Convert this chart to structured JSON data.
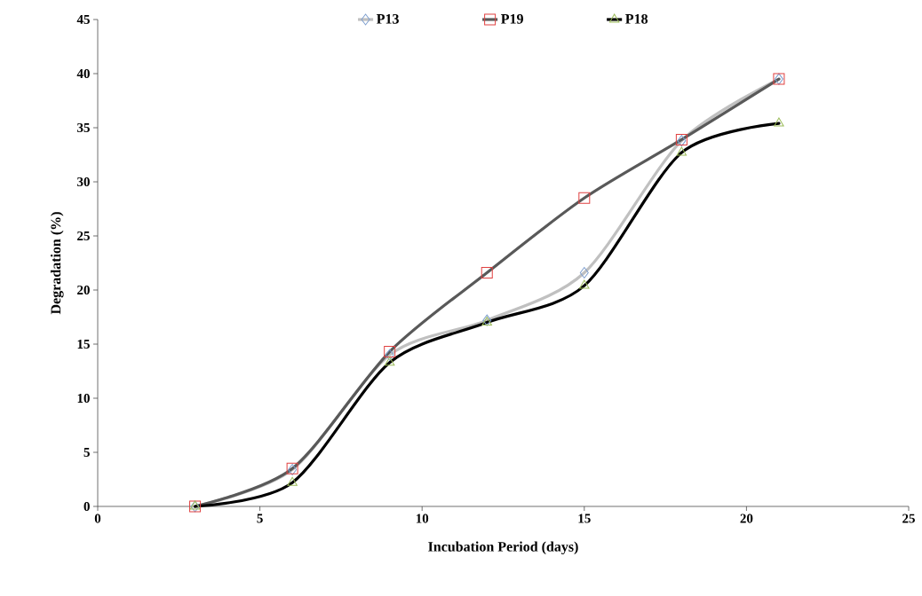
{
  "chart_data": {
    "type": "line",
    "xlabel": "Incubation Period (days)",
    "ylabel": "Degradation (%)",
    "x": [
      3,
      6,
      9,
      12,
      15,
      18,
      21
    ],
    "series": [
      {
        "name": "P13",
        "color": "#c0c0c0",
        "marker": "diamond",
        "colors": [
          "#7f9fcf",
          "#7f9fcf",
          "#7f9fcf",
          "#7f9fcf",
          "#7f9fcf",
          "#7f9fcf",
          "#7f9fcf"
        ],
        "values": [
          0,
          3.4,
          14.0,
          17.2,
          21.6,
          33.8,
          39.5
        ]
      },
      {
        "name": "P19",
        "color": "#595959",
        "marker": "square",
        "colors": [
          "#e04040",
          "#e04040",
          "#e04040",
          "#e04040",
          "#e04040",
          "#e04040",
          "#e04040"
        ],
        "values": [
          0,
          3.5,
          14.3,
          21.6,
          28.5,
          33.9,
          39.5
        ]
      },
      {
        "name": "P18",
        "color": "#000000",
        "marker": "triangle",
        "colors": [
          "#9bbb59",
          "#9bbb59",
          "#9bbb59",
          "#9bbb59",
          "#9bbb59",
          "#9bbb59",
          "#9bbb59"
        ],
        "values": [
          0,
          2.2,
          13.3,
          17.0,
          20.4,
          32.7,
          35.4
        ]
      }
    ],
    "xlim": [
      0,
      25
    ],
    "xticks": [
      0,
      5,
      10,
      15,
      20,
      25
    ],
    "ylim": [
      0,
      45
    ],
    "yticks": [
      0,
      5,
      10,
      15,
      20,
      25,
      30,
      35,
      40,
      45
    ],
    "grid": false,
    "legend": "top",
    "line_style": "solid"
  }
}
